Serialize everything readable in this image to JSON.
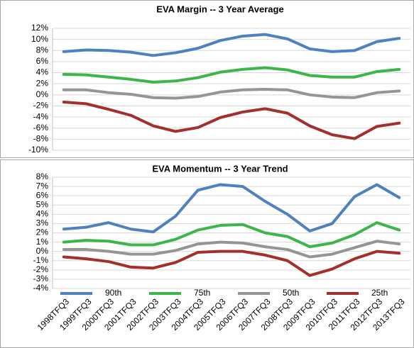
{
  "chart_data": [
    {
      "type": "line",
      "title": "EVA Margin -- 3 Year Average",
      "ylim": [
        -10,
        12
      ],
      "yticks": [
        {
          "value": -10,
          "label": "-10%"
        },
        {
          "value": -8,
          "label": "-8%"
        },
        {
          "value": -6,
          "label": "-6%"
        },
        {
          "value": -4,
          "label": "-4%"
        },
        {
          "value": -2,
          "label": "-2%"
        },
        {
          "value": 0,
          "label": "0%"
        },
        {
          "value": 2,
          "label": "2%"
        },
        {
          "value": 4,
          "label": "4%"
        },
        {
          "value": 6,
          "label": "6%"
        },
        {
          "value": 8,
          "label": "8%"
        },
        {
          "value": 10,
          "label": "10%"
        },
        {
          "value": 12,
          "label": "12%"
        }
      ],
      "grid": true,
      "series": [
        {
          "color": "#4f81bd",
          "values": [
            7.8,
            8.1,
            8.0,
            7.7,
            7.1,
            7.6,
            8.4,
            9.8,
            10.6,
            10.9,
            10.1,
            8.3,
            7.8,
            8.0,
            9.6,
            10.2
          ]
        },
        {
          "color": "#3cb54a",
          "values": [
            3.7,
            3.6,
            3.2,
            2.8,
            2.3,
            2.5,
            3.1,
            4.1,
            4.6,
            4.9,
            4.5,
            3.5,
            3.2,
            3.2,
            4.2,
            4.6
          ]
        },
        {
          "color": "#959595",
          "values": [
            0.9,
            0.9,
            0.4,
            0.1,
            -0.5,
            -0.6,
            -0.3,
            0.5,
            0.9,
            1.0,
            0.9,
            0.0,
            -0.4,
            -0.5,
            0.4,
            0.7
          ]
        },
        {
          "color": "#a2302c",
          "values": [
            -1.3,
            -1.6,
            -2.6,
            -3.7,
            -5.6,
            -6.6,
            -5.9,
            -4.1,
            -3.1,
            -2.5,
            -3.3,
            -5.6,
            -7.2,
            -7.9,
            -5.7,
            -5.1
          ]
        }
      ]
    },
    {
      "type": "line",
      "title": "EVA Momentum -- 3 Year Trend",
      "categories": [
        "1998TFQ3",
        "1999TFQ3",
        "2000TFQ3",
        "2001TFQ3",
        "2002TFQ3",
        "2003TFQ3",
        "2004TFQ3",
        "2005TFQ3",
        "2006TFQ3",
        "2007TFQ3",
        "2008TFQ3",
        "2009TFQ3",
        "2010TFQ3",
        "2011TFQ3",
        "2012TFQ3",
        "2013TFQ3"
      ],
      "ylim": [
        -4,
        8
      ],
      "yticks": [
        {
          "value": -4,
          "label": "-4%"
        },
        {
          "value": -3,
          "label": "-3%"
        },
        {
          "value": -2,
          "label": "-2%"
        },
        {
          "value": -1,
          "label": "-1%"
        },
        {
          "value": 0,
          "label": "0%"
        },
        {
          "value": 1,
          "label": "1%"
        },
        {
          "value": 2,
          "label": "2%"
        },
        {
          "value": 3,
          "label": "3%"
        },
        {
          "value": 4,
          "label": "4%"
        },
        {
          "value": 5,
          "label": "5%"
        },
        {
          "value": 6,
          "label": "6%"
        },
        {
          "value": 7,
          "label": "7%"
        },
        {
          "value": 8,
          "label": "8%"
        }
      ],
      "grid": true,
      "legend": "bottom",
      "series": [
        {
          "name": "90th",
          "color": "#4f81bd",
          "values": [
            2.4,
            2.6,
            3.1,
            2.4,
            2.1,
            3.8,
            6.6,
            7.2,
            7.0,
            5.4,
            4.0,
            2.2,
            3.0,
            5.9,
            7.2,
            5.8
          ]
        },
        {
          "name": "75th",
          "color": "#3cb54a",
          "values": [
            1.0,
            1.2,
            1.1,
            0.7,
            0.7,
            1.3,
            2.3,
            2.8,
            2.9,
            2.0,
            1.6,
            0.5,
            0.9,
            1.8,
            3.1,
            2.3
          ]
        },
        {
          "name": "50th",
          "color": "#959595",
          "values": [
            0.2,
            0.2,
            0.0,
            -0.3,
            -0.3,
            0.1,
            0.8,
            1.0,
            0.9,
            0.5,
            0.2,
            -0.6,
            -0.3,
            0.4,
            1.1,
            0.8
          ]
        },
        {
          "name": "25th",
          "color": "#a2302c",
          "values": [
            -0.6,
            -0.8,
            -1.1,
            -1.7,
            -1.8,
            -1.2,
            -0.1,
            0.0,
            0.0,
            -0.4,
            -1.0,
            -2.6,
            -1.9,
            -0.8,
            0.0,
            -0.2
          ]
        }
      ]
    }
  ]
}
